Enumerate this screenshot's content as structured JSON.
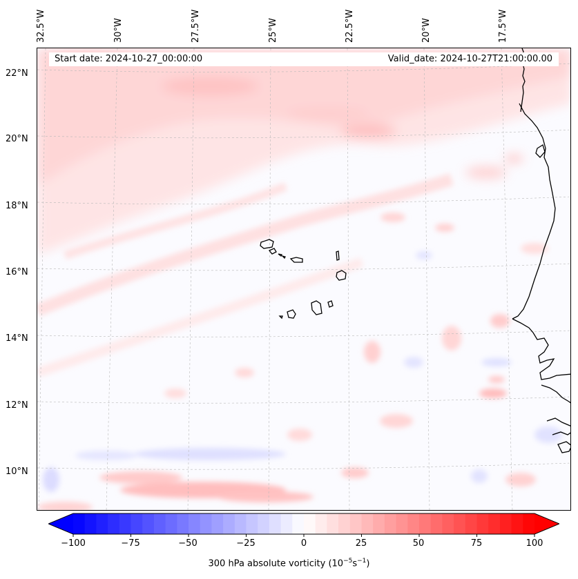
{
  "header": {
    "start_date": "Start date: 2024-10-27_00:00:00",
    "valid_date": "Valid_date: 2024-10-27T21:00:00.00"
  },
  "axes": {
    "lon_ticks": [
      "32.5°W",
      "30°W",
      "27.5°W",
      "25°W",
      "22.5°W",
      "20°W",
      "17.5°W"
    ],
    "lat_ticks": [
      "22°N",
      "20°N",
      "18°N",
      "16°N",
      "14°N",
      "12°N",
      "10°N"
    ]
  },
  "colorbar": {
    "ticks": [
      "−100",
      "−75",
      "−50",
      "−25",
      "0",
      "25",
      "50",
      "75",
      "100"
    ],
    "label_text": "300 hPa absolute vorticity (10",
    "label_exp1": "−5",
    "label_mid": "s",
    "label_exp2": "−1",
    "label_end": ")",
    "min_color": "#0000ff",
    "mid_color": "#ffffff",
    "max_color": "#ff0000",
    "range": [
      -100,
      100
    ],
    "extend": "both"
  },
  "map": {
    "region": "Cape Verde / West African coast",
    "gridlines": true,
    "field": "300 hPa absolute vorticity"
  }
}
